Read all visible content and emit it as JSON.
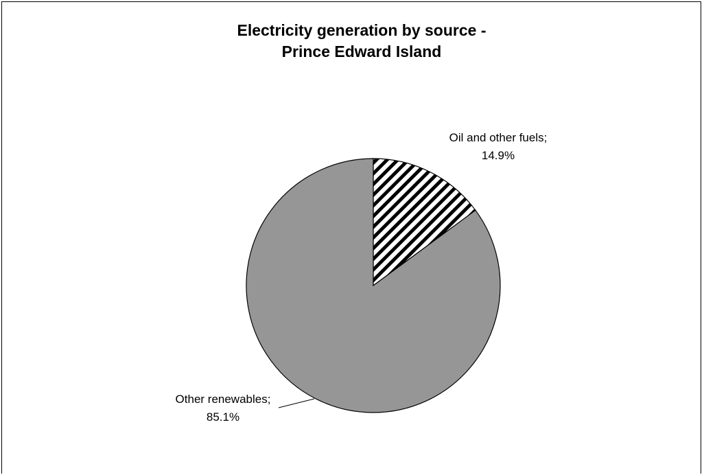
{
  "chart_data": {
    "type": "pie",
    "title_lines": [
      "Electricity generation by source -",
      "Prince Edward Island"
    ],
    "slices": [
      {
        "name": "Oil and other fuels",
        "value": 14.9,
        "label_line1": "Oil and other fuels;",
        "label_line2": "14.9%",
        "fill": "hatch"
      },
      {
        "name": "Other renewables",
        "value": 85.1,
        "label_line1": "Other renewables;",
        "label_line2": "85.1%",
        "fill": "#969696"
      }
    ],
    "start_angle_deg": 0,
    "direction": "clockwise",
    "legend": "none"
  }
}
